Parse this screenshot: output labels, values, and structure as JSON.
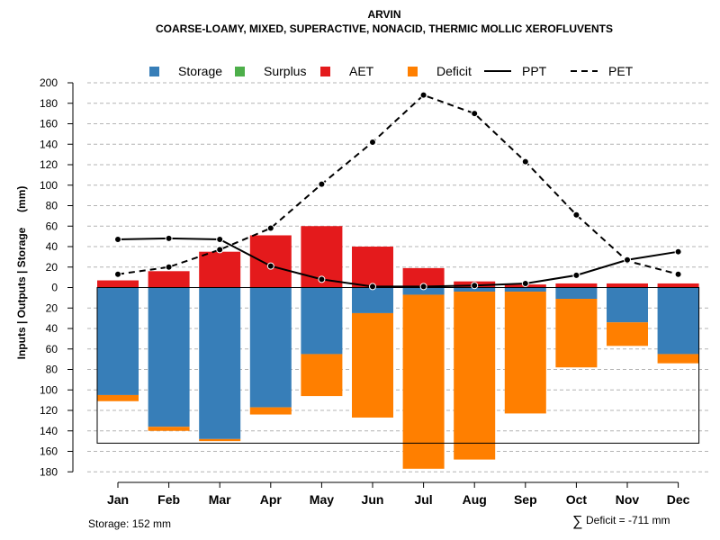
{
  "chart_data": {
    "type": "bar",
    "title": "ARVIN",
    "subtitle": "COARSE-LOAMY, MIXED, SUPERACTIVE, NONACID, THERMIC MOLLIC XEROFLUVENTS",
    "ylabel": "Inputs | Outputs | Storage     (mm)",
    "categories": [
      "Jan",
      "Feb",
      "Mar",
      "Apr",
      "May",
      "Jun",
      "Jul",
      "Aug",
      "Sep",
      "Oct",
      "Nov",
      "Dec"
    ],
    "ylim": [
      -180,
      200
    ],
    "yticks": [
      200,
      180,
      160,
      140,
      120,
      100,
      80,
      60,
      40,
      20,
      0,
      -20,
      -40,
      -60,
      -80,
      -100,
      -120,
      -140,
      -160,
      -180
    ],
    "ytick_labels": [
      "200",
      "180",
      "160",
      "140",
      "120",
      "100",
      "80",
      "60",
      "40",
      "20",
      "0",
      "20",
      "40",
      "60",
      "80",
      "100",
      "120",
      "140",
      "160",
      "180"
    ],
    "grid": true,
    "legend": [
      {
        "name": "Storage",
        "kind": "box",
        "color": "#377EB8"
      },
      {
        "name": "Surplus",
        "kind": "box",
        "color": "#4DAF4A"
      },
      {
        "name": "AET",
        "kind": "box",
        "color": "#E41A1C"
      },
      {
        "name": "Deficit",
        "kind": "box",
        "color": "#FF7F00"
      },
      {
        "name": "PPT",
        "kind": "solid",
        "color": "#000000"
      },
      {
        "name": "PET",
        "kind": "dashed",
        "color": "#000000"
      }
    ],
    "legend_position": "top",
    "series": [
      {
        "name": "AET",
        "color": "#E41A1C",
        "values": [
          7,
          16,
          35,
          51,
          60,
          40,
          19,
          6,
          3,
          4,
          4,
          4
        ]
      },
      {
        "name": "Storage",
        "color": "#377EB8",
        "values": [
          105,
          136,
          148,
          117,
          65,
          25,
          7,
          4,
          4,
          11,
          34,
          65
        ]
      },
      {
        "name": "Deficit",
        "color": "#FF7F00",
        "values": [
          6,
          4,
          2,
          7,
          41,
          102,
          170,
          164,
          119,
          67,
          23,
          9
        ]
      },
      {
        "name": "PPT",
        "color": "#000000",
        "values": [
          47,
          48,
          47,
          21,
          8,
          1,
          1,
          2,
          4,
          12,
          27,
          35
        ]
      },
      {
        "name": "PET",
        "color": "#000000",
        "values": [
          13,
          20,
          37,
          58,
          101,
          142,
          188,
          170,
          123,
          71,
          26,
          13
        ]
      }
    ],
    "storage_capacity": 152,
    "footer_left": "Storage: 152 mm",
    "footer_right_symbol": "∑",
    "footer_right": "Deficit = -711 mm"
  }
}
